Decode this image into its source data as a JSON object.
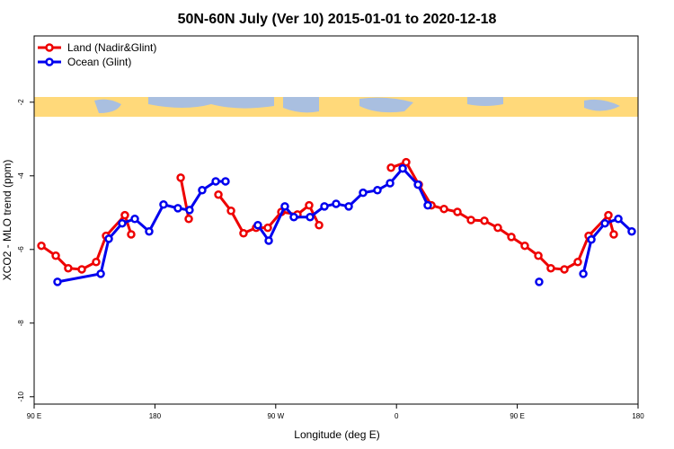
{
  "chart_data": {
    "type": "line",
    "title": "50N-60N July (Ver 10)   2015-01-01 to 2020-12-18",
    "x_label": "Longitude (deg E)",
    "y_label": "XCO2 - MLO trend (ppm)",
    "xlim": [
      90,
      540
    ],
    "xticks": [
      {
        "value": 90,
        "label": "90 E"
      },
      180,
      {
        "value": 270,
        "label": "90 W"
      },
      {
        "value": 360,
        "label": "0"
      },
      {
        "value": 450,
        "label": "90 E"
      },
      {
        "value": 540,
        "label": "180"
      }
    ],
    "ylim": [
      -10.2,
      -0.2
    ],
    "yticks": [
      -2,
      -4,
      -6,
      -8,
      -10
    ],
    "legend": "top-left",
    "series": [
      {
        "name": "Land (Nadir&Glint)",
        "color": "#ee0000",
        "x": [
          95.4,
          106.1,
          115.4,
          125.5,
          136.2,
          143.6,
          157.6,
          162.3,
          null,
          199.2,
          205.2,
          null,
          227.3,
          236.7,
          246.0,
          255.4,
          264.1,
          274.2,
          286.2,
          294.9,
          302.3,
          null,
          355.9,
          367.2,
          376.6,
          386.0,
          395.4,
          405.4,
          415.5,
          425.5,
          435.5,
          445.6,
          455.6,
          465.7,
          475.0,
          485.1,
          495.1,
          503.2,
          517.9,
          521.9
        ],
        "values": [
          -5.9,
          -6.17,
          -6.51,
          -6.54,
          -6.34,
          -5.63,
          -5.07,
          -5.59,
          null,
          -4.05,
          -5.17,
          null,
          -4.51,
          -4.95,
          -5.56,
          -5.41,
          -5.41,
          -4.98,
          -5.05,
          -4.8,
          -5.34,
          null,
          -3.78,
          -3.63,
          -4.24,
          -4.8,
          -4.9,
          -4.98,
          -5.2,
          -5.22,
          -5.41,
          -5.66,
          -5.9,
          -6.17,
          -6.51,
          -6.54,
          -6.34,
          -5.63,
          -5.07,
          -5.59
        ]
      },
      {
        "name": "Ocean (Glint)",
        "color": "#0000ee",
        "x": [
          107.4,
          139.6,
          145.6,
          155.6,
          165.0,
          175.7,
          186.4,
          197.1,
          205.8,
          215.2,
          225.3,
          232.6,
          null,
          256.7,
          264.8,
          276.8,
          283.5,
          295.6,
          306.3,
          315.0,
          324.4,
          335.1,
          345.8,
          355.2,
          364.6,
          376.0,
          383.3,
          null,
          466.3,
          null,
          499.2,
          505.2,
          515.3,
          525.3,
          535.3
        ],
        "values": [
          -6.88,
          -6.66,
          -5.71,
          -5.29,
          -5.17,
          -5.51,
          -4.78,
          -4.88,
          -4.93,
          -4.39,
          -4.15,
          -4.15,
          null,
          -5.34,
          -5.76,
          -4.83,
          -5.12,
          -5.12,
          -4.83,
          -4.76,
          -4.83,
          -4.46,
          -4.39,
          -4.2,
          -3.8,
          -4.24,
          -4.8,
          null,
          -6.88,
          null,
          -6.66,
          -5.73,
          -5.29,
          -5.17,
          -5.51
        ]
      }
    ]
  }
}
